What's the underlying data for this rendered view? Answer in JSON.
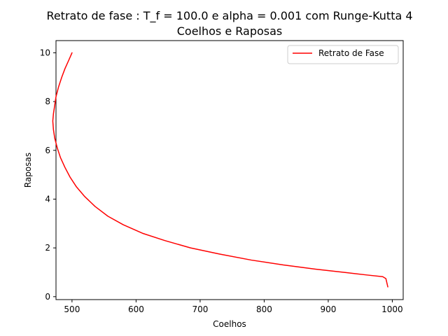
{
  "chart_data": {
    "type": "line",
    "title_line1": "Retrato de fase : T_f = 100.0 e alpha = 0.001 com Runge-Kutta 4",
    "title_line2": "Coelhos e Raposas",
    "xlabel": "Coelhos",
    "ylabel": "Raposas",
    "xlim": [
      475,
      1017
    ],
    "ylim": [
      -0.12,
      10.5
    ],
    "xticks": [
      500,
      600,
      700,
      800,
      900,
      1000
    ],
    "yticks": [
      0,
      2,
      4,
      6,
      8,
      10
    ],
    "grid": false,
    "legend_position": "top-right",
    "series": [
      {
        "name": "Retrato de Fase",
        "color": "#ff0000",
        "x": [
          500,
          495,
          489,
          484,
          479,
          475,
          473,
          471,
          470,
          471,
          473,
          477,
          482,
          489,
          497,
          507,
          520,
          536,
          556,
          580,
          610,
          645,
          685,
          730,
          780,
          830,
          880,
          930,
          960,
          985,
          990,
          993
        ],
        "y": [
          10.0,
          9.7,
          9.35,
          9.0,
          8.6,
          8.2,
          7.85,
          7.5,
          7.2,
          6.85,
          6.5,
          6.1,
          5.7,
          5.3,
          4.9,
          4.5,
          4.1,
          3.7,
          3.3,
          2.95,
          2.6,
          2.3,
          2.0,
          1.75,
          1.5,
          1.3,
          1.13,
          0.98,
          0.89,
          0.82,
          0.74,
          0.4
        ]
      }
    ]
  }
}
